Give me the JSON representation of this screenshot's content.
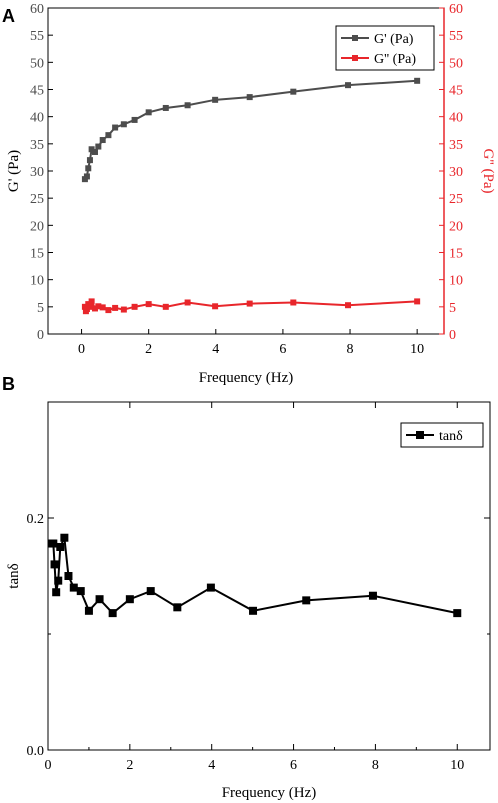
{
  "colors": {
    "black": "#000000",
    "gprime": "#4d4d4d",
    "gdouble": "#e8262b"
  },
  "chart_data": [
    {
      "type": "line",
      "panel_label": "A",
      "xlabel": "Frequency (Hz)",
      "ylabel": "G' (Pa)",
      "y2label": "G'' (Pa)",
      "xlim": [
        -1.0,
        10.8
      ],
      "ylim": [
        0,
        60
      ],
      "y2lim": [
        0,
        60
      ],
      "xticks": [
        0,
        2,
        4,
        6,
        8,
        10
      ],
      "yticks": [
        0,
        5,
        10,
        15,
        20,
        25,
        30,
        35,
        40,
        45,
        50,
        55,
        60
      ],
      "legend_position": "top-right",
      "series": [
        {
          "name": "G' (Pa)",
          "axis": "left",
          "color": "#4d4d4d",
          "x": [
            0.1,
            0.16,
            0.2,
            0.25,
            0.3,
            0.4,
            0.5,
            0.63,
            0.8,
            1.0,
            1.26,
            1.58,
            2.0,
            2.51,
            3.16,
            3.98,
            5.01,
            6.31,
            7.94,
            10.0
          ],
          "y": [
            28.5,
            29.0,
            30.5,
            32.0,
            34.0,
            33.5,
            34.5,
            35.7,
            36.6,
            38.0,
            38.6,
            39.4,
            40.8,
            41.6,
            42.1,
            43.1,
            43.6,
            44.6,
            45.8,
            46.6
          ]
        },
        {
          "name": "G'' (Pa)",
          "axis": "right",
          "color": "#e8262b",
          "x": [
            0.1,
            0.13,
            0.16,
            0.2,
            0.25,
            0.3,
            0.4,
            0.5,
            0.63,
            0.8,
            1.0,
            1.26,
            1.58,
            2.0,
            2.51,
            3.16,
            3.98,
            5.01,
            6.31,
            7.94,
            10.0
          ],
          "y": [
            5.0,
            4.2,
            4.6,
            5.5,
            5.0,
            6.0,
            4.7,
            5.1,
            4.9,
            4.4,
            4.8,
            4.5,
            5.0,
            5.5,
            5.0,
            5.8,
            5.1,
            5.6,
            5.8,
            5.3,
            6.0
          ]
        }
      ]
    },
    {
      "type": "line",
      "panel_label": "B",
      "xlabel": "Frequency (Hz)",
      "ylabel": "tanδ",
      "xlim": [
        0,
        10.8
      ],
      "ylim": [
        0,
        0.3
      ],
      "xticks": [
        0,
        2,
        4,
        6,
        8,
        10
      ],
      "yticks": [
        0,
        0.2
      ],
      "ytick_labels": [
        "0.0",
        "0.2"
      ],
      "legend_position": "top-right",
      "series": [
        {
          "name": "tanδ",
          "color": "#000000",
          "x": [
            0.1,
            0.13,
            0.16,
            0.2,
            0.25,
            0.3,
            0.4,
            0.5,
            0.63,
            0.8,
            1.0,
            1.26,
            1.58,
            2.0,
            2.51,
            3.16,
            3.98,
            5.01,
            6.31,
            7.94,
            10.0
          ],
          "y": [
            0.178,
            0.178,
            0.16,
            0.136,
            0.146,
            0.175,
            0.183,
            0.15,
            0.14,
            0.137,
            0.12,
            0.13,
            0.118,
            0.13,
            0.137,
            0.123,
            0.14,
            0.12,
            0.129,
            0.133,
            0.118
          ]
        }
      ]
    }
  ]
}
